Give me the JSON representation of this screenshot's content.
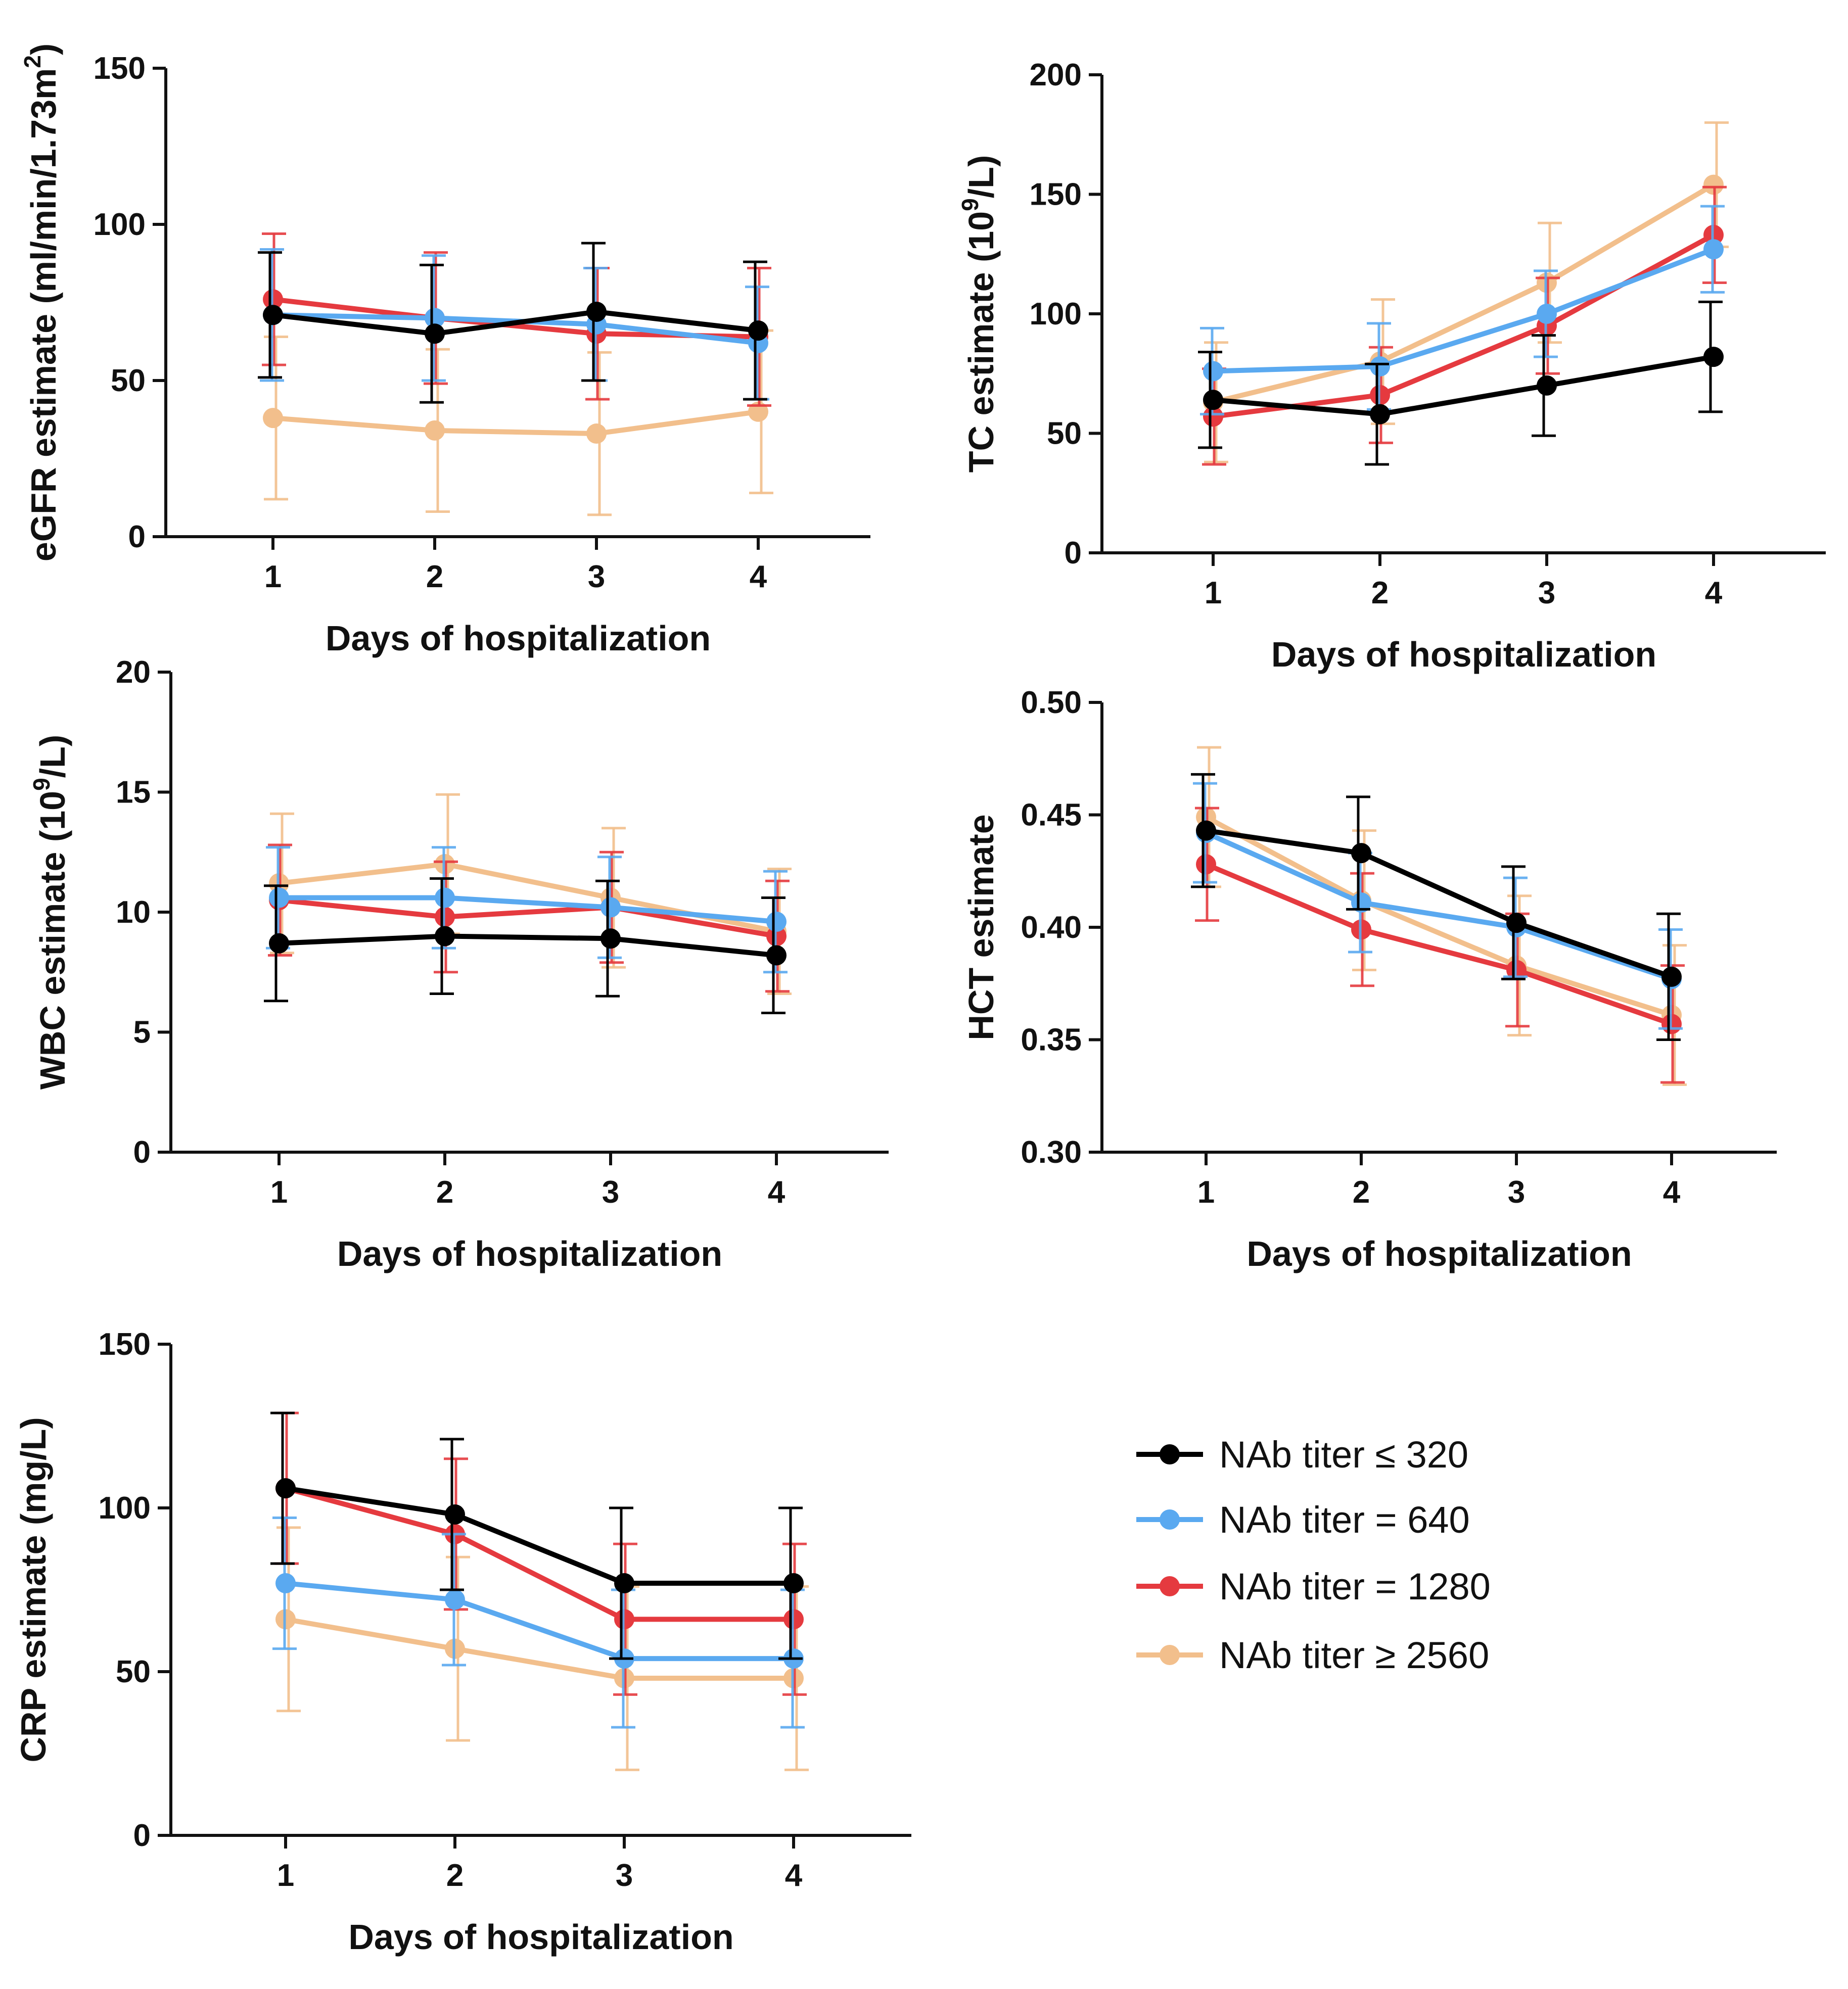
{
  "series_meta": [
    {
      "name": "NAb titer ≤ 320",
      "color": "#000000"
    },
    {
      "name": "NAb titer = 640",
      "color": "#5aa9f0"
    },
    {
      "name": "NAb titer = 1280",
      "color": "#e53a3f"
    },
    {
      "name": "NAb titer ≥ 2560",
      "color": "#f2bf8c"
    }
  ],
  "chart_data": [
    {
      "id": "egfr",
      "type": "line",
      "xlabel": "Days of hospitalization",
      "ylabel_parts": [
        "eGFR estimate (ml/min/1.73m",
        "2",
        ")"
      ],
      "x": [
        1,
        2,
        3,
        4
      ],
      "xticks": [
        "1",
        "2",
        "3",
        "4"
      ],
      "ylim": [
        0,
        150
      ],
      "yticks": [
        "0",
        "50",
        "100",
        "150"
      ],
      "series": [
        {
          "name": "NAb titer ≤ 320",
          "values": [
            71,
            65,
            72,
            66
          ],
          "err": [
            20,
            22,
            22,
            22
          ]
        },
        {
          "name": "NAb titer = 640",
          "values": [
            71,
            70,
            68,
            62
          ],
          "err": [
            21,
            20,
            18,
            18
          ]
        },
        {
          "name": "NAb titer = 1280",
          "values": [
            76,
            70,
            65,
            64
          ],
          "err": [
            21,
            21,
            21,
            22
          ]
        },
        {
          "name": "NAb titer ≥ 2560",
          "values": [
            38,
            34,
            33,
            40
          ],
          "err": [
            26,
            26,
            26,
            26
          ]
        }
      ]
    },
    {
      "id": "tc",
      "type": "line",
      "xlabel": "Days of hospitalization",
      "ylabel_parts": [
        "TC estimate (10",
        "9",
        "/L)"
      ],
      "x": [
        1,
        2,
        3,
        4
      ],
      "xticks": [
        "1",
        "2",
        "3",
        "4"
      ],
      "ylim": [
        0,
        200
      ],
      "yticks": [
        "0",
        "50",
        "100",
        "150",
        "200"
      ],
      "series": [
        {
          "name": "NAb titer ≤ 320",
          "values": [
            64,
            58,
            70,
            82
          ],
          "err": [
            20,
            21,
            21,
            23
          ]
        },
        {
          "name": "NAb titer = 640",
          "values": [
            76,
            78,
            100,
            127
          ],
          "err": [
            18,
            18,
            18,
            18
          ]
        },
        {
          "name": "NAb titer = 1280",
          "values": [
            57,
            66,
            95,
            133
          ],
          "err": [
            20,
            20,
            20,
            20
          ]
        },
        {
          "name": "NAb titer ≥ 2560",
          "values": [
            63,
            80,
            113,
            154
          ],
          "err": [
            25,
            26,
            25,
            26
          ]
        }
      ]
    },
    {
      "id": "wbc",
      "type": "line",
      "xlabel": "Days of hospitalization",
      "ylabel_parts": [
        "WBC estimate (10",
        "9",
        "/L)"
      ],
      "x": [
        1,
        2,
        3,
        4
      ],
      "xticks": [
        "1",
        "2",
        "3",
        "4"
      ],
      "ylim": [
        0,
        20
      ],
      "yticks": [
        "0",
        "5",
        "10",
        "15",
        "20"
      ],
      "series": [
        {
          "name": "NAb titer ≤ 320",
          "values": [
            8.7,
            9.0,
            8.9,
            8.2
          ],
          "err": [
            2.4,
            2.4,
            2.4,
            2.4
          ]
        },
        {
          "name": "NAb titer = 640",
          "values": [
            10.6,
            10.6,
            10.2,
            9.6
          ],
          "err": [
            2.1,
            2.1,
            2.1,
            2.1
          ]
        },
        {
          "name": "NAb titer = 1280",
          "values": [
            10.5,
            9.8,
            10.2,
            9.0
          ],
          "err": [
            2.3,
            2.3,
            2.3,
            2.3
          ]
        },
        {
          "name": "NAb titer ≥ 2560",
          "values": [
            11.2,
            12.0,
            10.6,
            9.2
          ],
          "err": [
            2.9,
            2.9,
            2.9,
            2.6
          ]
        }
      ]
    },
    {
      "id": "hct",
      "type": "line",
      "xlabel": "Days of hospitalization",
      "ylabel_parts": [
        "HCT estimate",
        "",
        ""
      ],
      "x": [
        1,
        2,
        3,
        4
      ],
      "xticks": [
        "1",
        "2",
        "3",
        "4"
      ],
      "ylim": [
        0.3,
        0.5
      ],
      "yticks": [
        "0.30",
        "0.35",
        "0.40",
        "0.45",
        "0.50"
      ],
      "series": [
        {
          "name": "NAb titer ≤ 320",
          "values": [
            0.443,
            0.433,
            0.402,
            0.378
          ],
          "err": [
            0.025,
            0.025,
            0.025,
            0.028
          ]
        },
        {
          "name": "NAb titer = 640",
          "values": [
            0.442,
            0.411,
            0.4,
            0.377
          ],
          "err": [
            0.022,
            0.022,
            0.022,
            0.022
          ]
        },
        {
          "name": "NAb titer = 1280",
          "values": [
            0.428,
            0.399,
            0.381,
            0.357
          ],
          "err": [
            0.025,
            0.025,
            0.025,
            0.026
          ]
        },
        {
          "name": "NAb titer ≥ 2560",
          "values": [
            0.449,
            0.412,
            0.383,
            0.361
          ],
          "err": [
            0.031,
            0.031,
            0.031,
            0.031
          ]
        }
      ]
    },
    {
      "id": "crp",
      "type": "line",
      "xlabel": "Days of hospitalization",
      "ylabel_parts": [
        "CRP estimate (mg/L)",
        "",
        ""
      ],
      "x": [
        1,
        2,
        3,
        4
      ],
      "xticks": [
        "1",
        "2",
        "3",
        "4"
      ],
      "ylim": [
        0,
        150
      ],
      "yticks": [
        "0",
        "50",
        "100",
        "150"
      ],
      "series": [
        {
          "name": "NAb titer ≤ 320",
          "values": [
            106,
            98,
            77,
            77
          ],
          "err": [
            23,
            23,
            23,
            23
          ]
        },
        {
          "name": "NAb titer = 640",
          "values": [
            77,
            72,
            54,
            54
          ],
          "err": [
            20,
            20,
            21,
            21
          ]
        },
        {
          "name": "NAb titer = 1280",
          "values": [
            106,
            92,
            66,
            66
          ],
          "err": [
            23,
            23,
            23,
            23
          ]
        },
        {
          "name": "NAb titer ≥ 2560",
          "values": [
            66,
            57,
            48,
            48
          ],
          "err": [
            28,
            28,
            28,
            28
          ]
        }
      ]
    }
  ],
  "legend": {
    "items": [
      {
        "label": "NAb titer ≤ 320",
        "color": "#000000"
      },
      {
        "label": "NAb titer = 640",
        "color": "#5aa9f0"
      },
      {
        "label": "NAb titer = 1280",
        "color": "#e53a3f"
      },
      {
        "label": "NAb titer ≥ 2560",
        "color": "#f2bf8c"
      }
    ]
  }
}
